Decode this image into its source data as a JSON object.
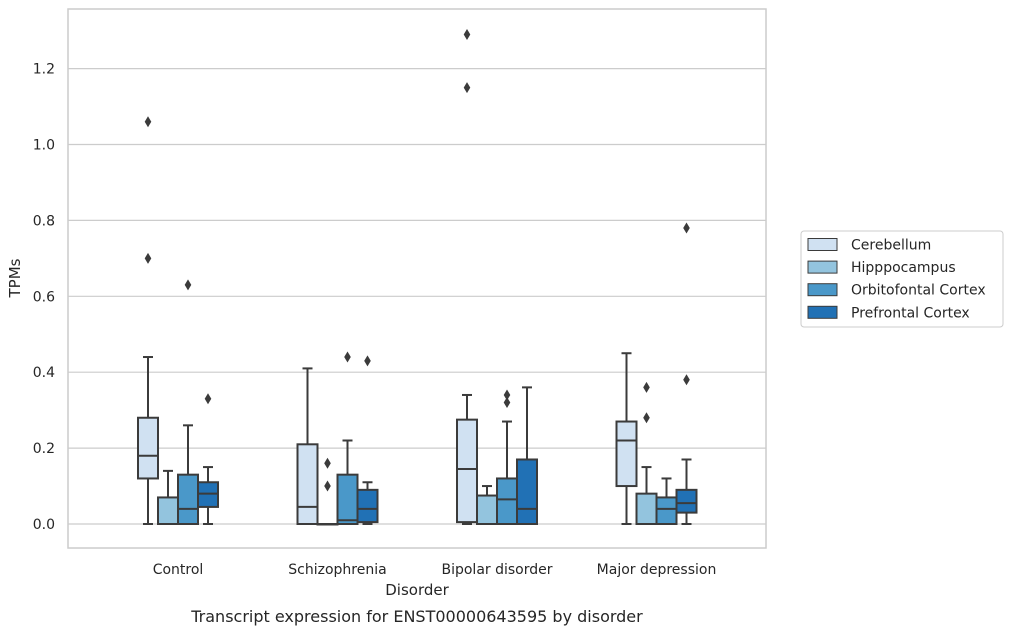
{
  "chart_data": {
    "type": "box",
    "xlabel": "Disorder",
    "ylabel": "TPMs",
    "caption": "Transcript expression for ENST00000643595 by disorder",
    "ylim": [
      -0.065,
      1.365
    ],
    "yticks": [
      "0.0",
      "0.2",
      "0.4",
      "0.6",
      "0.8",
      "1.0",
      "1.2"
    ],
    "grid": "horizontal",
    "legend_position": "right",
    "categories": [
      "Control",
      "Schizophrenia",
      "Bipolar disorder",
      "Major depression"
    ],
    "series": [
      {
        "name": "Cerebellum",
        "color": "#d0e1f2",
        "boxes": [
          {
            "whislo": 0.0,
            "q1": 0.12,
            "med": 0.18,
            "q3": 0.28,
            "whishi": 0.44,
            "fliers": [
              0.7,
              1.06
            ]
          },
          {
            "whislo": 0.0,
            "q1": 0.0,
            "med": 0.045,
            "q3": 0.21,
            "whishi": 0.41,
            "fliers": []
          },
          {
            "whislo": 0.0,
            "q1": 0.005,
            "med": 0.145,
            "q3": 0.275,
            "whishi": 0.34,
            "fliers": [
              1.15,
              1.29
            ]
          },
          {
            "whislo": 0.0,
            "q1": 0.1,
            "med": 0.22,
            "q3": 0.27,
            "whishi": 0.45,
            "fliers": []
          }
        ]
      },
      {
        "name": "Hipppocampus",
        "color": "#93c4de",
        "boxes": [
          {
            "whislo": 0.0,
            "q1": 0.0,
            "med": 0.0,
            "q3": 0.07,
            "whishi": 0.14,
            "fliers": []
          },
          {
            "whislo": 0.0,
            "q1": 0.0,
            "med": 0.0,
            "q3": 0.0,
            "whishi": 0.0,
            "fliers": [
              0.1,
              0.16
            ]
          },
          {
            "whislo": 0.0,
            "q1": 0.0,
            "med": 0.0,
            "q3": 0.075,
            "whishi": 0.1,
            "fliers": []
          },
          {
            "whislo": 0.0,
            "q1": 0.0,
            "med": 0.0,
            "q3": 0.08,
            "whishi": 0.15,
            "fliers": [
              0.28,
              0.36
            ]
          }
        ]
      },
      {
        "name": "Orbitofontal Cortex",
        "color": "#4a98c9",
        "boxes": [
          {
            "whislo": 0.0,
            "q1": 0.0,
            "med": 0.04,
            "q3": 0.13,
            "whishi": 0.26,
            "fliers": [
              0.63
            ]
          },
          {
            "whislo": 0.0,
            "q1": 0.0,
            "med": 0.01,
            "q3": 0.13,
            "whishi": 0.22,
            "fliers": [
              0.44
            ]
          },
          {
            "whislo": 0.0,
            "q1": 0.0,
            "med": 0.065,
            "q3": 0.12,
            "whishi": 0.27,
            "fliers": [
              0.32,
              0.34
            ]
          },
          {
            "whislo": 0.0,
            "q1": 0.0,
            "med": 0.04,
            "q3": 0.07,
            "whishi": 0.12,
            "fliers": []
          }
        ]
      },
      {
        "name": "Prefrontal Cortex",
        "color": "#2171b5",
        "boxes": [
          {
            "whislo": 0.0,
            "q1": 0.045,
            "med": 0.08,
            "q3": 0.11,
            "whishi": 0.15,
            "fliers": [
              0.33
            ]
          },
          {
            "whislo": 0.0,
            "q1": 0.005,
            "med": 0.04,
            "q3": 0.09,
            "whishi": 0.11,
            "fliers": [
              0.43
            ]
          },
          {
            "whislo": 0.0,
            "q1": 0.0,
            "med": 0.04,
            "q3": 0.17,
            "whishi": 0.36,
            "fliers": []
          },
          {
            "whislo": 0.0,
            "q1": 0.03,
            "med": 0.055,
            "q3": 0.09,
            "whishi": 0.17,
            "fliers": [
              0.38,
              0.78
            ]
          }
        ]
      }
    ]
  }
}
